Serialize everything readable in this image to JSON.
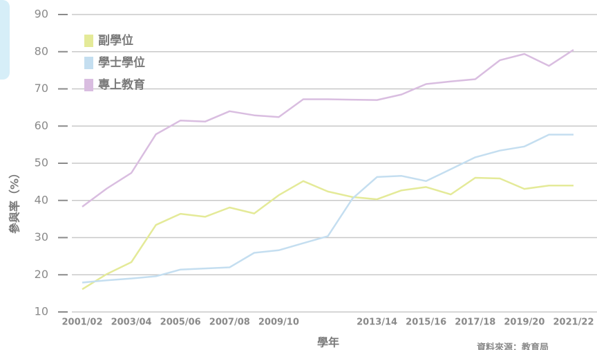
{
  "chart_data": {
    "type": "line",
    "y_label": "參與率（%）",
    "x_label": "學年",
    "source": "資料來源：教育局",
    "categories": [
      "2001/02",
      null,
      "2003/04",
      null,
      "2005/06",
      null,
      "2007/08",
      null,
      "2009/10",
      null,
      null,
      null,
      "2013/14",
      null,
      "2015/16",
      null,
      "2017/18",
      null,
      "2019/20",
      null,
      "2021/22"
    ],
    "ylim": [
      10,
      90
    ],
    "yticks": [
      10,
      20,
      30,
      40,
      50,
      60,
      70,
      80,
      90
    ],
    "grid": true,
    "legend": "top-left",
    "series": [
      {
        "name": "副學位",
        "color": "#e4ea98",
        "values": [
          16.1,
          20.2,
          23.4,
          33.4,
          36.4,
          35.6,
          38.1,
          36.5,
          41.4,
          45.2,
          42.4,
          40.9,
          40.3,
          42.7,
          43.6,
          41.6,
          46.1,
          45.9,
          43.1,
          44.0,
          44.0
        ]
      },
      {
        "name": "學士學位",
        "color": "#c4def0",
        "values": [
          17.9,
          18.5,
          19.0,
          19.6,
          21.4,
          21.7,
          22.0,
          25.9,
          26.6,
          28.5,
          30.4,
          40.5,
          46.3,
          46.6,
          45.2,
          48.4,
          51.6,
          53.4,
          54.5,
          57.7,
          57.7
        ]
      },
      {
        "name": "專上教育",
        "color": "#d9bde0",
        "values": [
          38.3,
          43.2,
          47.4,
          57.8,
          61.5,
          61.2,
          64.0,
          62.9,
          62.4,
          67.2,
          67.2,
          67.1,
          67.0,
          68.5,
          71.3,
          72.0,
          72.6,
          77.7,
          79.4,
          76.2,
          80.5
        ]
      }
    ]
  }
}
